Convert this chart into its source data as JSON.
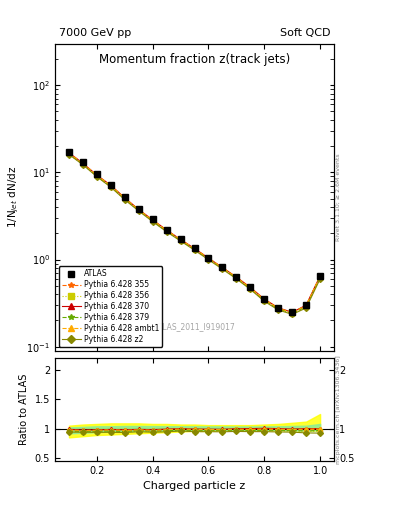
{
  "title": "Momentum fraction z(track jets)",
  "top_left_label": "7000 GeV pp",
  "top_right_label": "Soft QCD",
  "watermark": "ATLAS_2011_I919017",
  "ylabel_main": "1/N$_{jet}$ dN/dz",
  "ylabel_ratio": "Ratio to ATLAS",
  "xlabel": "Charged particle z",
  "right_label_main": "Rivet 3.1.10; ≥ 2.6M events",
  "right_label_ratio": "mcplots.cern.ch [arXiv:1306.3436]",
  "x_data": [
    0.1,
    0.15,
    0.2,
    0.25,
    0.3,
    0.35,
    0.4,
    0.45,
    0.5,
    0.55,
    0.6,
    0.65,
    0.7,
    0.75,
    0.8,
    0.85,
    0.9,
    0.95,
    1.0
  ],
  "atlas_y": [
    17.0,
    13.0,
    9.5,
    7.2,
    5.2,
    3.8,
    2.9,
    2.2,
    1.7,
    1.35,
    1.05,
    0.82,
    0.63,
    0.48,
    0.35,
    0.28,
    0.25,
    0.3,
    0.65
  ],
  "atlas_yerr": [
    0.5,
    0.4,
    0.3,
    0.2,
    0.15,
    0.12,
    0.09,
    0.07,
    0.05,
    0.04,
    0.03,
    0.025,
    0.02,
    0.015,
    0.01,
    0.009,
    0.008,
    0.01,
    0.02
  ],
  "py355_y": [
    16.5,
    12.5,
    9.2,
    7.0,
    5.0,
    3.7,
    2.8,
    2.15,
    1.68,
    1.32,
    1.03,
    0.8,
    0.62,
    0.47,
    0.345,
    0.275,
    0.245,
    0.295,
    0.64
  ],
  "py356_y": [
    16.2,
    12.3,
    9.0,
    6.8,
    4.9,
    3.65,
    2.75,
    2.1,
    1.65,
    1.3,
    1.01,
    0.79,
    0.61,
    0.46,
    0.338,
    0.27,
    0.24,
    0.285,
    0.62
  ],
  "py370_y": [
    16.8,
    12.7,
    9.3,
    7.1,
    5.1,
    3.75,
    2.85,
    2.18,
    1.7,
    1.34,
    1.04,
    0.81,
    0.63,
    0.48,
    0.352,
    0.28,
    0.248,
    0.3,
    0.65
  ],
  "py379_y": [
    16.3,
    12.4,
    9.1,
    6.9,
    4.95,
    3.68,
    2.78,
    2.12,
    1.66,
    1.31,
    1.02,
    0.795,
    0.615,
    0.465,
    0.34,
    0.272,
    0.242,
    0.288,
    0.63
  ],
  "pyambt1_y": [
    16.6,
    12.6,
    9.25,
    7.05,
    5.05,
    3.72,
    2.82,
    2.16,
    1.69,
    1.33,
    1.035,
    0.805,
    0.625,
    0.473,
    0.348,
    0.277,
    0.246,
    0.297,
    0.645
  ],
  "pyz2_y": [
    16.0,
    12.2,
    8.9,
    6.75,
    4.85,
    3.6,
    2.72,
    2.08,
    1.63,
    1.28,
    0.995,
    0.775,
    0.6,
    0.455,
    0.332,
    0.264,
    0.235,
    0.278,
    0.6
  ],
  "band_yellow_low": [
    0.85,
    0.87,
    0.89,
    0.9,
    0.91,
    0.92,
    0.93,
    0.94,
    0.95,
    0.96,
    0.96,
    0.97,
    0.97,
    0.97,
    0.97,
    0.97,
    0.97,
    0.97,
    0.97
  ],
  "band_yellow_high": [
    1.05,
    1.07,
    1.08,
    1.09,
    1.09,
    1.09,
    1.08,
    1.08,
    1.07,
    1.07,
    1.06,
    1.06,
    1.06,
    1.06,
    1.07,
    1.08,
    1.1,
    1.12,
    1.25
  ],
  "band_green_low": [
    0.92,
    0.93,
    0.94,
    0.95,
    0.955,
    0.96,
    0.965,
    0.97,
    0.97,
    0.975,
    0.975,
    0.98,
    0.98,
    0.98,
    0.98,
    0.98,
    0.97,
    0.97,
    0.97
  ],
  "band_green_high": [
    1.02,
    1.03,
    1.04,
    1.04,
    1.045,
    1.045,
    1.043,
    1.042,
    1.04,
    1.04,
    1.038,
    1.037,
    1.036,
    1.036,
    1.038,
    1.04,
    1.045,
    1.05,
    1.08
  ],
  "color_355": "#ff6600",
  "color_356": "#cccc00",
  "color_370": "#cc0000",
  "color_379": "#66aa00",
  "color_ambt1": "#ffaa00",
  "color_z2": "#888800",
  "color_atlas": "#000000",
  "xlim": [
    0.05,
    1.05
  ],
  "ylim_main": [
    0.09,
    300
  ],
  "ylim_ratio": [
    0.45,
    2.2
  ]
}
